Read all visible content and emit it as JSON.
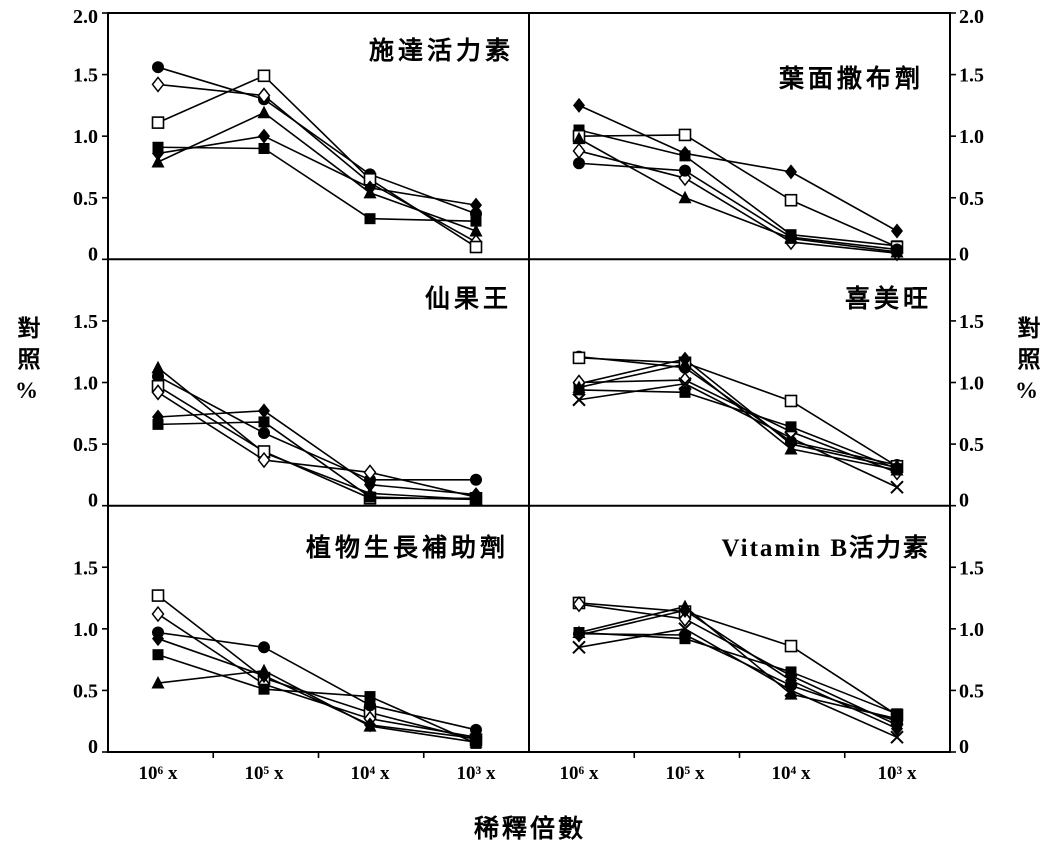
{
  "chart_data": {
    "type": "line",
    "xlabel": "稀釋倍數",
    "ylabel": "對照%",
    "categories": [
      "10⁶ x",
      "10⁵ x",
      "10⁴ x",
      "10³ x"
    ],
    "ylim": [
      0,
      2.0
    ],
    "grid": false,
    "legend": false,
    "panels": [
      {
        "title": "施達活力素",
        "yticks": [
          "2.0",
          "1.5",
          "1.0",
          "0.5",
          "0"
        ],
        "series": [
          {
            "marker": "filled-circle",
            "values": [
              1.56,
              1.3,
              0.69,
              0.37
            ]
          },
          {
            "marker": "open-diamond",
            "values": [
              1.42,
              1.33,
              0.62,
              0.14
            ]
          },
          {
            "marker": "open-square",
            "values": [
              1.11,
              1.49,
              0.65,
              0.1
            ]
          },
          {
            "marker": "filled-square",
            "values": [
              0.91,
              0.9,
              0.33,
              0.31
            ]
          },
          {
            "marker": "filled-diamond",
            "values": [
              0.86,
              1.0,
              0.58,
              0.44
            ]
          },
          {
            "marker": "filled-triangle",
            "values": [
              0.79,
              1.19,
              0.54,
              0.23
            ]
          }
        ]
      },
      {
        "title": "葉面撒布劑",
        "yticks": [
          "2.0",
          "1.5",
          "1.0",
          "0.5",
          "0"
        ],
        "series": [
          {
            "marker": "filled-diamond",
            "values": [
              1.25,
              0.86,
              0.71,
              0.23
            ]
          },
          {
            "marker": "filled-square",
            "values": [
              1.05,
              0.84,
              0.2,
              0.11
            ]
          },
          {
            "marker": "open-square",
            "values": [
              1.0,
              1.01,
              0.48,
              0.1
            ]
          },
          {
            "marker": "open-diamond",
            "values": [
              0.88,
              0.66,
              0.14,
              0.05
            ]
          },
          {
            "marker": "filled-circle",
            "values": [
              0.78,
              0.72,
              0.18,
              0.08
            ]
          },
          {
            "marker": "filled-triangle",
            "values": [
              0.98,
              0.5,
              0.17,
              0.06
            ]
          }
        ]
      },
      {
        "title": "仙果王",
        "yticks": [
          "1.5",
          "1.0",
          "0.5",
          "0"
        ],
        "series": [
          {
            "marker": "filled-triangle",
            "values": [
              1.12,
              0.43,
              0.1,
              0.05
            ]
          },
          {
            "marker": "filled-circle",
            "values": [
              1.05,
              0.59,
              0.21,
              0.21
            ]
          },
          {
            "marker": "open-square",
            "values": [
              0.97,
              0.44,
              0.06,
              0.06
            ]
          },
          {
            "marker": "open-diamond",
            "values": [
              0.92,
              0.37,
              0.27,
              0.07
            ]
          },
          {
            "marker": "filled-diamond",
            "values": [
              0.72,
              0.77,
              0.17,
              0.09
            ]
          },
          {
            "marker": "filled-square",
            "values": [
              0.66,
              0.68,
              0.07,
              0.05
            ]
          }
        ]
      },
      {
        "title": "喜美旺",
        "yticks": [
          "1.5",
          "1.0",
          "0.5",
          "0"
        ],
        "series": [
          {
            "marker": "filled-circle",
            "values": [
              1.21,
              1.12,
              0.52,
              0.33
            ]
          },
          {
            "marker": "open-square",
            "values": [
              1.2,
              1.16,
              0.85,
              0.32
            ]
          },
          {
            "marker": "filled-diamond",
            "values": [
              0.99,
              1.19,
              0.5,
              0.31
            ]
          },
          {
            "marker": "open-diamond",
            "values": [
              1.0,
              1.02,
              0.6,
              0.27
            ]
          },
          {
            "marker": "filled-square",
            "values": [
              0.94,
              0.92,
              0.64,
              0.3
            ]
          },
          {
            "marker": "filled-triangle",
            "values": [
              0.96,
              1.15,
              0.46,
              0.29
            ]
          },
          {
            "marker": "x",
            "values": [
              0.86,
              0.99,
              0.55,
              0.15
            ]
          }
        ]
      },
      {
        "title": "植物生長補助劑",
        "yticks": [
          "1.5",
          "1.0",
          "0.5",
          "0"
        ],
        "series": [
          {
            "marker": "open-square",
            "values": [
              1.27,
              0.6,
              0.32,
              0.1
            ]
          },
          {
            "marker": "open-diamond",
            "values": [
              1.12,
              0.55,
              0.27,
              0.12
            ]
          },
          {
            "marker": "filled-circle",
            "values": [
              0.97,
              0.85,
              0.38,
              0.18
            ]
          },
          {
            "marker": "filled-diamond",
            "values": [
              0.92,
              0.62,
              0.22,
              0.11
            ]
          },
          {
            "marker": "filled-square",
            "values": [
              0.79,
              0.51,
              0.45,
              0.07
            ]
          },
          {
            "marker": "filled-triangle",
            "values": [
              0.56,
              0.66,
              0.21,
              0.08
            ]
          }
        ]
      },
      {
        "title": "Vitamin B活力素",
        "yticks": [
          "1.5",
          "1.0",
          "0.5",
          "0"
        ],
        "series": [
          {
            "marker": "open-square",
            "values": [
              1.21,
              1.14,
              0.86,
              0.3
            ]
          },
          {
            "marker": "open-diamond",
            "values": [
              1.2,
              1.08,
              0.62,
              0.22
            ]
          },
          {
            "marker": "filled-triangle",
            "values": [
              0.97,
              1.18,
              0.47,
              0.27
            ]
          },
          {
            "marker": "filled-diamond",
            "values": [
              0.95,
              1.15,
              0.58,
              0.19
            ]
          },
          {
            "marker": "filled-circle",
            "values": [
              0.96,
              0.95,
              0.54,
              0.25
            ]
          },
          {
            "marker": "filled-square",
            "values": [
              0.97,
              0.92,
              0.65,
              0.31
            ]
          },
          {
            "marker": "x",
            "values": [
              0.85,
              1.0,
              0.5,
              0.12
            ]
          }
        ]
      }
    ]
  }
}
